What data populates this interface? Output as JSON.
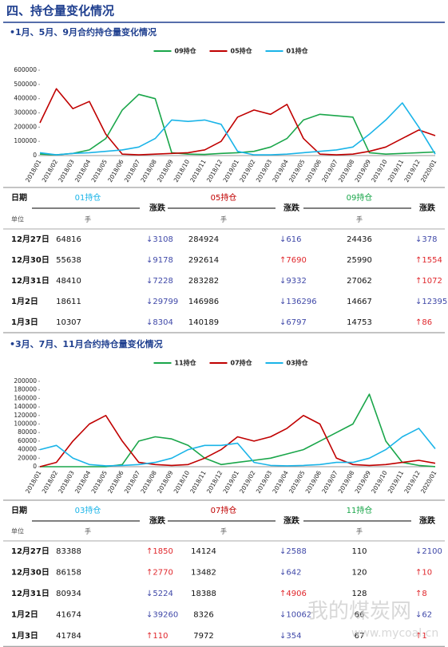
{
  "header": {
    "title": "四、持仓量变化情况"
  },
  "section_titles": [
    "•1月、5月、9月合约持仓量变化情况",
    "•3月、7月、11月合约持仓量变化情况"
  ],
  "chart_data": [
    {
      "type": "line",
      "categories": [
        "2018/01",
        "2018/02",
        "2018/03",
        "2018/04",
        "2018/05",
        "2018/06",
        "2018/07",
        "2018/08",
        "2018/09",
        "2018/10",
        "2018/11",
        "2018/12",
        "2019/01",
        "2019/02",
        "2019/03",
        "2019/04",
        "2019/05",
        "2019/06",
        "2019/07",
        "2019/08",
        "2019/09",
        "2019/10",
        "2019/11",
        "2019/12",
        "2020/01"
      ],
      "series": [
        {
          "name": "09持仓",
          "color": "#1aa64a",
          "values": [
            10000,
            5000,
            15000,
            40000,
            120000,
            320000,
            430000,
            400000,
            20000,
            10000,
            8000,
            15000,
            20000,
            30000,
            60000,
            120000,
            250000,
            290000,
            280000,
            270000,
            20000,
            10000,
            15000,
            20000,
            25000
          ]
        },
        {
          "name": "05持仓",
          "color": "#c00000",
          "values": [
            230000,
            470000,
            330000,
            380000,
            150000,
            10000,
            5000,
            10000,
            15000,
            20000,
            40000,
            100000,
            270000,
            320000,
            290000,
            360000,
            120000,
            10000,
            5000,
            10000,
            30000,
            60000,
            120000,
            180000,
            140000
          ]
        },
        {
          "name": "01持仓",
          "color": "#1ab4e8",
          "values": [
            20000,
            5000,
            15000,
            20000,
            30000,
            40000,
            60000,
            120000,
            250000,
            240000,
            250000,
            220000,
            30000,
            5000,
            5000,
            10000,
            20000,
            30000,
            40000,
            60000,
            150000,
            250000,
            370000,
            200000,
            10000
          ]
        }
      ],
      "ylim": [
        0,
        600000
      ],
      "yticks": [
        0,
        100000,
        200000,
        300000,
        400000,
        500000,
        600000
      ],
      "legend": "top"
    },
    {
      "type": "line",
      "categories": [
        "2018/01",
        "2018/02",
        "2018/03",
        "2018/04",
        "2018/05",
        "2018/06",
        "2018/07",
        "2018/08",
        "2018/09",
        "2018/10",
        "2018/11",
        "2018/12",
        "2019/01",
        "2019/02",
        "2019/03",
        "2019/04",
        "2019/05",
        "2019/06",
        "2019/07",
        "2019/08",
        "2019/09",
        "2019/10",
        "2019/11",
        "2019/12",
        "2020/01"
      ],
      "series": [
        {
          "name": "11持仓",
          "color": "#1aa64a",
          "values": [
            0,
            0,
            0,
            0,
            0,
            5000,
            60000,
            70000,
            65000,
            50000,
            20000,
            5000,
            10000,
            15000,
            20000,
            30000,
            40000,
            60000,
            80000,
            100000,
            170000,
            60000,
            10000,
            3000,
            110
          ]
        },
        {
          "name": "07持仓",
          "color": "#c00000",
          "values": [
            0,
            10000,
            60000,
            100000,
            120000,
            60000,
            10000,
            5000,
            3000,
            5000,
            20000,
            40000,
            70000,
            60000,
            70000,
            90000,
            120000,
            100000,
            20000,
            5000,
            3000,
            5000,
            10000,
            15000,
            8000
          ]
        },
        {
          "name": "03持仓",
          "color": "#1ab4e8",
          "values": [
            40000,
            50000,
            20000,
            5000,
            2000,
            3000,
            5000,
            10000,
            20000,
            40000,
            50000,
            50000,
            55000,
            10000,
            3000,
            2000,
            3000,
            5000,
            10000,
            10000,
            20000,
            40000,
            70000,
            90000,
            42000
          ]
        }
      ],
      "ylim": [
        0,
        200000
      ],
      "yticks": [
        0,
        20000,
        40000,
        60000,
        80000,
        100000,
        120000,
        140000,
        160000,
        180000,
        200000
      ],
      "legend": "top"
    }
  ],
  "tables": [
    {
      "columns": [
        "日期",
        {
          "text": "01持仓",
          "color": "#1ab4e8"
        },
        "涨跌",
        {
          "text": "05持仓",
          "color": "#c00000"
        },
        "涨跌",
        {
          "text": "09持仓",
          "color": "#1aa64a"
        },
        "涨跌"
      ],
      "unit_row": [
        "单位",
        "手",
        "手",
        "手"
      ],
      "rows": [
        [
          "12月27日",
          "64816",
          {
            "text": "↓3108",
            "color": "#3f48a8"
          },
          "284924",
          {
            "text": "↓616",
            "color": "#3f48a8"
          },
          "24436",
          {
            "text": "↓378",
            "color": "#3f48a8"
          }
        ],
        [
          "12月30日",
          "55638",
          {
            "text": "↓9178",
            "color": "#3f48a8"
          },
          "292614",
          {
            "text": "↑7690",
            "color": "#e0262b"
          },
          "25990",
          {
            "text": "↑1554",
            "color": "#e0262b"
          }
        ],
        [
          "12月31日",
          "48410",
          {
            "text": "↓7228",
            "color": "#3f48a8"
          },
          "283282",
          {
            "text": "↓9332",
            "color": "#3f48a8"
          },
          "27062",
          {
            "text": "↑1072",
            "color": "#e0262b"
          }
        ],
        [
          "1月2日",
          "18611",
          {
            "text": "↓29799",
            "color": "#3f48a8"
          },
          "146986",
          {
            "text": "↓136296",
            "color": "#3f48a8"
          },
          "14667",
          {
            "text": "↓12395",
            "color": "#3f48a8"
          }
        ],
        [
          "1月3日",
          "10307",
          {
            "text": "↓8304",
            "color": "#3f48a8"
          },
          "140189",
          {
            "text": "↓6797",
            "color": "#3f48a8"
          },
          "14753",
          {
            "text": "↑86",
            "color": "#e0262b"
          }
        ]
      ]
    },
    {
      "columns": [
        "日期",
        {
          "text": "03持仓",
          "color": "#1ab4e8"
        },
        "涨跌",
        {
          "text": "07持仓",
          "color": "#c00000"
        },
        "涨跌",
        {
          "text": "11持仓",
          "color": "#1aa64a"
        },
        "涨跌"
      ],
      "unit_row": [
        "单位",
        "手",
        "手",
        "手"
      ],
      "rows": [
        [
          "12月27日",
          "83388",
          {
            "text": "↑1850",
            "color": "#e0262b"
          },
          "14124",
          {
            "text": "↓2588",
            "color": "#3f48a8"
          },
          "110",
          {
            "text": "↓2100",
            "color": "#3f48a8"
          }
        ],
        [
          "12月30日",
          "86158",
          {
            "text": "↑2770",
            "color": "#e0262b"
          },
          "13482",
          {
            "text": "↓642",
            "color": "#3f48a8"
          },
          "120",
          {
            "text": "↑10",
            "color": "#e0262b"
          }
        ],
        [
          "12月31日",
          "80934",
          {
            "text": "↓5224",
            "color": "#3f48a8"
          },
          "18388",
          {
            "text": "↑4906",
            "color": "#e0262b"
          },
          "128",
          {
            "text": "↑8",
            "color": "#e0262b"
          }
        ],
        [
          "1月2日",
          "41674",
          {
            "text": "↓39260",
            "color": "#3f48a8"
          },
          "8326",
          {
            "text": "↓10062",
            "color": "#3f48a8"
          },
          "66",
          {
            "text": "↓62",
            "color": "#3f48a8"
          }
        ],
        [
          "1月3日",
          "41784",
          {
            "text": "↑110",
            "color": "#e0262b"
          },
          "7972",
          {
            "text": "↓354",
            "color": "#3f48a8"
          },
          "67",
          {
            "text": "↑1",
            "color": "#e0262b"
          }
        ]
      ]
    }
  ],
  "watermark": [
    "我的煤炭网",
    "www.mycoal.cn"
  ]
}
